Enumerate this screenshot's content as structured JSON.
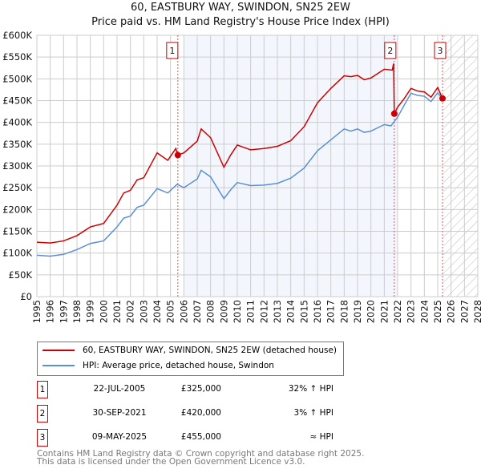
{
  "chart_data": {
    "type": "line",
    "title": "60, EASTBURY WAY, SWINDON, SN25 2EW",
    "subtitle": "Price paid vs. HM Land Registry's House Price Index (HPI)",
    "xlim": [
      1995,
      2028
    ],
    "ylim": [
      0,
      600000
    ],
    "x_ticks": [
      "1995",
      "1996",
      "1997",
      "1998",
      "1999",
      "2000",
      "2001",
      "2002",
      "2003",
      "2004",
      "2005",
      "2006",
      "2007",
      "2008",
      "2009",
      "2010",
      "2011",
      "2012",
      "2013",
      "2014",
      "2015",
      "2016",
      "2017",
      "2018",
      "2019",
      "2020",
      "2021",
      "2022",
      "2023",
      "2024",
      "2025",
      "2026",
      "2027",
      "2028"
    ],
    "y_ticks": [
      "£0",
      "£50K",
      "£100K",
      "£150K",
      "£200K",
      "£250K",
      "£300K",
      "£350K",
      "£400K",
      "£450K",
      "£500K",
      "£550K",
      "£600K"
    ],
    "grid": true,
    "shaded_range": [
      2006.0,
      2022.0
    ],
    "hatched_from": 2025.45,
    "series": [
      {
        "name": "60, EASTBURY WAY, SWINDON, SN25 2EW (detached house)",
        "color": "#cc0000",
        "x": [
          1995,
          1996,
          1997,
          1998,
          1999,
          2000,
          2001,
          2001.5,
          2002,
          2002.5,
          2003,
          2004,
          2004.8,
          2005.4,
          2005.55,
          2006,
          2007,
          2007.3,
          2008,
          2009,
          2009.5,
          2010,
          2011,
          2012,
          2013,
          2014,
          2015,
          2016,
          2017,
          2018,
          2018.5,
          2019,
          2019.5,
          2020,
          2021,
          2021.6,
          2021.7,
          2021.75,
          2022,
          2022.5,
          2023,
          2023.5,
          2024,
          2024.5,
          2025,
          2025.36
        ],
        "y": [
          125000,
          123000,
          128000,
          140000,
          160000,
          168000,
          210000,
          238000,
          244000,
          268000,
          273000,
          330000,
          313000,
          340000,
          325000,
          330000,
          357000,
          385000,
          365000,
          297000,
          325000,
          348000,
          337000,
          340000,
          345000,
          358000,
          390000,
          445000,
          478000,
          507000,
          505000,
          508000,
          498000,
          502000,
          522000,
          520000,
          535000,
          420000,
          435000,
          455000,
          478000,
          472000,
          470000,
          458000,
          480000,
          455000
        ]
      },
      {
        "name": "HPI: Average price, detached house, Swindon",
        "color": "#5b8fd4",
        "x": [
          1995,
          1996,
          1997,
          1998,
          1999,
          2000,
          2001,
          2001.5,
          2002,
          2002.5,
          2003,
          2004,
          2004.8,
          2005.5,
          2006,
          2007,
          2007.3,
          2008,
          2009,
          2009.5,
          2010,
          2011,
          2012,
          2013,
          2014,
          2015,
          2016,
          2017,
          2018,
          2018.5,
          2019,
          2019.5,
          2020,
          2021,
          2021.5,
          2022,
          2022.5,
          2023,
          2023.5,
          2024,
          2024.5,
          2025,
          2025.4
        ],
        "y": [
          95000,
          93000,
          97000,
          108000,
          122000,
          128000,
          160000,
          180000,
          185000,
          205000,
          210000,
          248000,
          238000,
          258000,
          250000,
          270000,
          290000,
          275000,
          225000,
          245000,
          262000,
          255000,
          256000,
          260000,
          272000,
          295000,
          335000,
          360000,
          385000,
          380000,
          385000,
          377000,
          380000,
          395000,
          392000,
          412000,
          440000,
          467000,
          462000,
          460000,
          448000,
          468000,
          452000
        ]
      }
    ],
    "sales": [
      {
        "label": "1",
        "x": 2005.55,
        "price": 325000,
        "date": "22-JUL-2005",
        "price_text": "£325,000",
        "hpi_text": "32% ↑ HPI"
      },
      {
        "label": "2",
        "x": 2021.75,
        "price": 420000,
        "date": "30-SEP-2021",
        "price_text": "£420,000",
        "hpi_text": "3% ↑ HPI"
      },
      {
        "label": "3",
        "x": 2025.36,
        "price": 455000,
        "date": "09-MAY-2025",
        "price_text": "£455,000",
        "hpi_text": "≈ HPI"
      }
    ]
  },
  "footer": {
    "line1": "Contains HM Land Registry data © Crown copyright and database right 2025.",
    "line2": "This data is licensed under the Open Government Licence v3.0."
  }
}
